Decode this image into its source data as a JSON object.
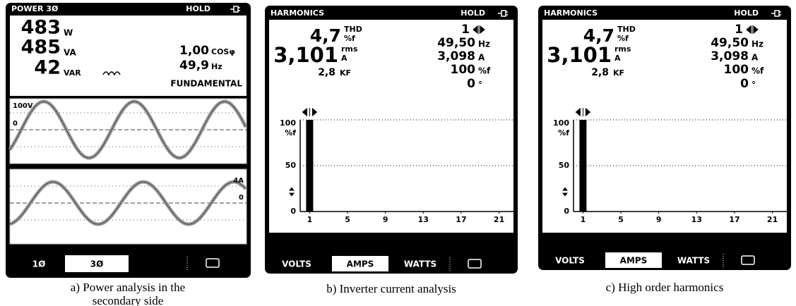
{
  "panels": [
    {
      "header": {
        "title": "POWER 3Ø",
        "status": "HOLD"
      },
      "readings": {
        "active_power": {
          "value": "483",
          "unit": "W"
        },
        "apparent_power": {
          "value": "485",
          "unit": "VA"
        },
        "reactive_power": {
          "value": "42",
          "unit": "VAR"
        },
        "power_factor": {
          "value": "1,00",
          "unit": "COSφ"
        },
        "frequency": {
          "value": "49,9",
          "unit": "Hz"
        },
        "mode": "FUNDAMENTAL"
      },
      "voltage_scope": {
        "scale": "100V",
        "zero": "0"
      },
      "current_scope": {
        "scale": "4A",
        "zero": "0"
      },
      "tabs": [
        "1Ø",
        "3Ø"
      ],
      "caption": "a) Power analysis in the secondary side"
    },
    {
      "header": {
        "title": "HARMONICS",
        "status": "HOLD"
      },
      "readings": {
        "thd": {
          "value": "4,7",
          "label": "THD",
          "unit": "%f"
        },
        "rms": {
          "value": "3,101",
          "label": "rms",
          "unit": "A"
        },
        "kf": {
          "value": "2,8",
          "unit": "KF"
        },
        "harmonic": "1",
        "frequency": {
          "value": "49,50",
          "unit": "Hz"
        },
        "amplitude": {
          "value": "3,098",
          "unit": "A"
        },
        "relative": {
          "value": "100",
          "unit": "%f"
        },
        "phase": {
          "value": "0",
          "unit": "°"
        }
      },
      "chart_data": {
        "type": "bar",
        "x": [
          1
        ],
        "values": [
          100
        ],
        "color": "#000000",
        "xlim": [
          0,
          22
        ],
        "xticks": [
          1,
          5,
          9,
          13,
          17,
          21
        ],
        "ylim": [
          0,
          100
        ],
        "yticks": [
          0,
          50,
          100
        ],
        "y_unit": "%f"
      },
      "tabs": [
        "VOLTS",
        "AMPS",
        "WATTS"
      ],
      "caption": "b) Inverter current analysis"
    },
    {
      "header": {
        "title": "HARMONICS",
        "status": "HOLD"
      },
      "readings": {
        "thd": {
          "value": "4,7",
          "label": "THD",
          "unit": "%f"
        },
        "rms": {
          "value": "3,101",
          "label": "rms",
          "unit": "A"
        },
        "kf": {
          "value": "2,8",
          "unit": "KF"
        },
        "harmonic": "1",
        "frequency": {
          "value": "49,50",
          "unit": "Hz"
        },
        "amplitude": {
          "value": "3,098",
          "unit": "A"
        },
        "relative": {
          "value": "100",
          "unit": "%f"
        },
        "phase": {
          "value": "0",
          "unit": "°"
        }
      },
      "chart_data": {
        "type": "bar",
        "x": [
          1
        ],
        "values": [
          100
        ],
        "color": "#000000",
        "xlim": [
          0,
          22
        ],
        "xticks": [
          1,
          5,
          9,
          13,
          17,
          21
        ],
        "ylim": [
          0,
          100
        ],
        "yticks": [
          0,
          50,
          100
        ],
        "y_unit": "%f"
      },
      "tabs": [
        "VOLTS",
        "AMPS",
        "WATTS"
      ],
      "caption": "c) High order harmonics"
    }
  ]
}
